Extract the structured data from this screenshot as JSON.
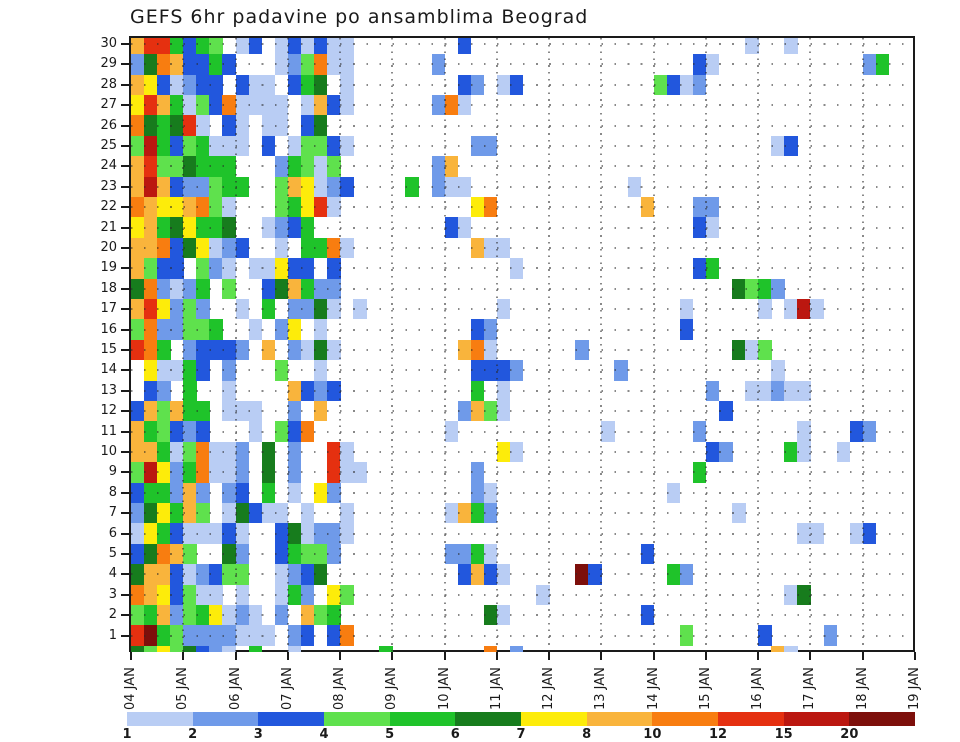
{
  "title": "GEFS 6hr padavine po ansamblima Beograd",
  "chart_data": {
    "type": "heatmap",
    "title": "GEFS 6hr padavine po ansamblima Beograd",
    "x_axis": {
      "tick_labels": [
        "04 JAN",
        "05 JAN",
        "06 JAN",
        "07 JAN",
        "08 JAN",
        "09 JAN",
        "10 JAN",
        "11 JAN",
        "12 JAN",
        "13 JAN",
        "14 JAN",
        "15 JAN",
        "16 JAN",
        "17 JAN",
        "18 JAN",
        "19 JAN"
      ]
    },
    "y_axis": {
      "tick_labels": [
        "30",
        "29",
        "28",
        "27",
        "26",
        "25",
        "24",
        "23",
        "22",
        "21",
        "20",
        "19",
        "18",
        "17",
        "16",
        "15",
        "14",
        "13",
        "12",
        "11",
        "10",
        "9",
        "8",
        "7",
        "6",
        "5",
        "4",
        "3",
        "2",
        "1"
      ]
    },
    "legend": {
      "tick_labels": [
        "1",
        "2",
        "3",
        "4",
        "5",
        "6",
        "7",
        "8",
        "10",
        "12",
        "15",
        "20"
      ],
      "colors": [
        "#b9cdf4",
        "#6f9ae9",
        "#2257dd",
        "#5fe14d",
        "#1fc32a",
        "#177c1d",
        "#fdec0a",
        "#f9b43c",
        "#f87d10",
        "#e53010",
        "#bb1710",
        "#7d0f0b"
      ]
    },
    "palette": {
      "1": "#b9cdf4",
      "2": "#6f9ae9",
      "3": "#2257dd",
      "4": "#5fe14d",
      "5": "#1fc32a",
      "6": "#177c1d",
      "7": "#fdec0a",
      "8": "#f9b43c",
      "9": "#f87d10",
      "A": "#e53010",
      "B": "#bb1710",
      "C": "#7d0f0b"
    },
    "cell_encoding": ". = no shading, 1..9/A/B/C = color bin index of 6hr precipitation class (legend bins 1,2,3,4,5,6,7,8,10,12,15,20 mm)",
    "grid_columns": 60,
    "rows": [
      {
        "label": "30",
        "cells": "8AA5354.13.131311........3.....................1..1............"
      },
      {
        "label": "29",
        "cells": "26983353...124911......2...................31...........25"
      },
      {
        "label": "28",
        "cells": "8731233.311.356.1........32.13..........4312..............."
      },
      {
        "label": "27",
        "cells": "7A8514391111.1831......291......................................"
      },
      {
        "label": "26",
        "cells": "9656A1.31.11.36....................................."
      },
      {
        "label": "25",
        "cells": "4B5345111.3.14431.........22.....................13......"
      },
      {
        "label": "24",
        "cells": "8A446555...25414.......28............................."
      },
      {
        "label": "23",
        "cells": "8B8322455..487123....5.211............1........."
      },
      {
        "label": "22",
        "cells": "98778941...457A1..........79...........8...22...."
      },
      {
        "label": "21",
        "cells": "78567556..1235..........31.................31."
      },
      {
        "label": "20",
        "cells": "889367123..1.5591.........811....................."
      },
      {
        "label": "19",
        "cells": "8433.421.11733.3.............1.............35........."
      },
      {
        "label": "18",
        "cells": "692125.4..368522..............................6452..."
      },
      {
        "label": "17",
        "cells": "8A7242..1.5.2261.1..........1.............1.....1.1B1."
      },
      {
        "label": "16",
        "cells": "4922445..1.27.1...........32..............3........."
      },
      {
        "label": "15",
        "cells": "A95.23332.8.2161.........891......2...........614."
      },
      {
        "label": "14",
        "cells": ".71153.2...4..1...........3332.......2...........1..."
      },
      {
        "label": "13",
        "cells": ".32.5..1....8323..........5.1...............2..11211...."
      },
      {
        "label": "12",
        "cells": "384855.111..2.8..........2841................3........."
      },
      {
        "label": "11",
        "cells": "854323...1.439..........1...........1......2.......1...32"
      },
      {
        "label": "10",
        "cells": "885149112.6.2..A1...........71..............32....51..1..."
      },
      {
        "label": "9",
        "cells": "4B7259112.6.2..A11........2................5......"
      },
      {
        "label": "8",
        "cells": "355282.23.5.1.72..........21.............1..."
      },
      {
        "label": "7",
        "cells": "267584.16311.1..1.......1852..................1........"
      },
      {
        "label": "6",
        "cells": "175311131..361221..................................11..13..."
      },
      {
        "label": "5",
        "cells": "36984..62..35442........2251...........3......."
      },
      {
        "label": "4",
        "cells": "688312344..1236..........3831.....C3.....52......"
      },
      {
        "label": "3",
        "cells": "9873411.1..152.74..............1..................16........."
      },
      {
        "label": "2",
        "cells": "4582457121.2.845...........61..........3........."
      },
      {
        "label": "1",
        "cells": "AC542222111.23.39.........................4.....3....2........."
      },
      {
        "label": "",
        "cells": "64746321.5..1......5.......9.2...................81....."
      }
    ]
  }
}
